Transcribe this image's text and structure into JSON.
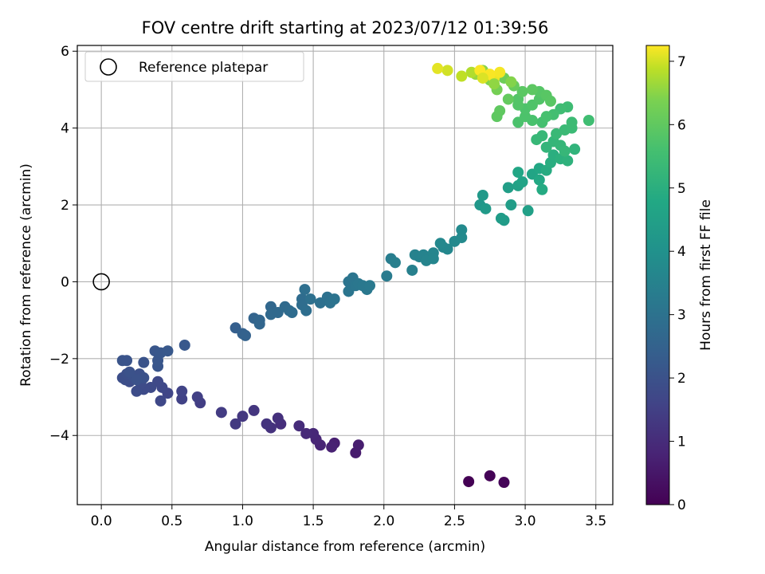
{
  "chart_data": {
    "type": "scatter",
    "title": "FOV centre drift starting at 2023/07/12 01:39:56",
    "xlabel": "Angular distance from reference (arcmin)",
    "ylabel": "Rotation from reference (arcmin)",
    "xlim": [
      -0.17,
      3.62
    ],
    "ylim": [
      -5.8,
      6.15
    ],
    "xticks": [
      0.0,
      0.5,
      1.0,
      1.5,
      2.0,
      2.5,
      3.0,
      3.5
    ],
    "xtick_labels": [
      "0.0",
      "0.5",
      "1.0",
      "1.5",
      "2.0",
      "2.5",
      "3.0",
      "3.5"
    ],
    "yticks": [
      -4,
      -2,
      0,
      2,
      4,
      6
    ],
    "ytick_labels": [
      "−4",
      "−2",
      "0",
      "2",
      "4",
      "6"
    ],
    "grid": true,
    "colormap": "viridis",
    "colorbar": {
      "label": "Hours from first FF file",
      "range": [
        0,
        7.25
      ],
      "ticks": [
        0,
        1,
        2,
        3,
        4,
        5,
        6,
        7
      ],
      "tick_labels": [
        "0",
        "1",
        "2",
        "3",
        "4",
        "5",
        "6",
        "7"
      ]
    },
    "legend": {
      "position": "top-left",
      "entries": [
        "Reference platepar"
      ]
    },
    "reference_point": {
      "x": 0.0,
      "y": 0.0,
      "style": "open-circle",
      "label": "Reference platepar"
    },
    "series": [
      {
        "columns": [
          "x",
          "y",
          "hours"
        ],
        "points": [
          [
            2.6,
            -5.2,
            0.0
          ],
          [
            2.75,
            -5.05,
            0.05
          ],
          [
            2.85,
            -5.22,
            0.1
          ],
          [
            1.8,
            -4.45,
            0.6
          ],
          [
            1.82,
            -4.25,
            0.65
          ],
          [
            1.65,
            -4.2,
            0.7
          ],
          [
            1.63,
            -4.3,
            0.75
          ],
          [
            1.55,
            -4.25,
            0.8
          ],
          [
            1.52,
            -4.1,
            0.85
          ],
          [
            1.5,
            -3.95,
            0.9
          ],
          [
            1.45,
            -3.95,
            0.95
          ],
          [
            1.4,
            -3.75,
            1.0
          ],
          [
            1.27,
            -3.7,
            1.05
          ],
          [
            1.25,
            -3.55,
            1.1
          ],
          [
            1.2,
            -3.8,
            1.15
          ],
          [
            1.17,
            -3.7,
            1.2
          ],
          [
            1.08,
            -3.35,
            1.25
          ],
          [
            1.0,
            -3.5,
            1.3
          ],
          [
            0.95,
            -3.7,
            1.35
          ],
          [
            0.85,
            -3.4,
            1.4
          ],
          [
            0.7,
            -3.15,
            1.45
          ],
          [
            0.68,
            -3.0,
            1.5
          ],
          [
            0.57,
            -3.05,
            1.55
          ],
          [
            0.57,
            -2.85,
            1.6
          ],
          [
            0.47,
            -2.9,
            1.65
          ],
          [
            0.43,
            -2.75,
            1.7
          ],
          [
            0.42,
            -3.1,
            1.72
          ],
          [
            0.4,
            -2.6,
            1.75
          ],
          [
            0.35,
            -2.75,
            1.78
          ],
          [
            0.3,
            -2.8,
            1.8
          ],
          [
            0.28,
            -2.65,
            1.82
          ],
          [
            0.25,
            -2.85,
            1.84
          ],
          [
            0.2,
            -2.6,
            1.86
          ],
          [
            0.17,
            -2.55,
            1.88
          ],
          [
            0.15,
            -2.5,
            1.9
          ],
          [
            0.18,
            -2.4,
            1.92
          ],
          [
            0.22,
            -2.45,
            1.94
          ],
          [
            0.27,
            -2.4,
            1.96
          ],
          [
            0.3,
            -2.5,
            1.98
          ],
          [
            0.25,
            -2.55,
            2.0
          ],
          [
            0.2,
            -2.35,
            2.02
          ],
          [
            0.3,
            -2.1,
            2.04
          ],
          [
            0.15,
            -2.05,
            2.06
          ],
          [
            0.18,
            -2.05,
            2.08
          ],
          [
            0.4,
            -2.2,
            2.1
          ],
          [
            0.4,
            -2.05,
            2.12
          ],
          [
            0.38,
            -1.8,
            2.14
          ],
          [
            0.42,
            -1.85,
            2.16
          ],
          [
            0.47,
            -1.8,
            2.18
          ],
          [
            0.59,
            -1.65,
            2.2
          ],
          [
            0.95,
            -1.2,
            2.4
          ],
          [
            1.0,
            -1.35,
            2.45
          ],
          [
            1.02,
            -1.4,
            2.5
          ],
          [
            1.08,
            -0.95,
            2.55
          ],
          [
            1.12,
            -1.0,
            2.6
          ],
          [
            1.12,
            -1.1,
            2.62
          ],
          [
            1.2,
            -0.65,
            2.65
          ],
          [
            1.2,
            -0.85,
            2.7
          ],
          [
            1.25,
            -0.8,
            2.72
          ],
          [
            1.3,
            -0.65,
            2.75
          ],
          [
            1.33,
            -0.75,
            2.78
          ],
          [
            1.35,
            -0.8,
            2.8
          ],
          [
            1.42,
            -0.45,
            2.82
          ],
          [
            1.42,
            -0.6,
            2.85
          ],
          [
            1.45,
            -0.75,
            2.88
          ],
          [
            1.44,
            -0.2,
            2.9
          ],
          [
            1.48,
            -0.45,
            2.92
          ],
          [
            1.55,
            -0.55,
            2.95
          ],
          [
            1.6,
            -0.4,
            2.98
          ],
          [
            1.62,
            -0.55,
            3.0
          ],
          [
            1.65,
            -0.45,
            3.02
          ],
          [
            1.75,
            0.0,
            3.05
          ],
          [
            1.78,
            0.1,
            3.08
          ],
          [
            1.75,
            -0.25,
            3.1
          ],
          [
            1.8,
            -0.1,
            3.12
          ],
          [
            1.82,
            -0.05,
            3.15
          ],
          [
            1.85,
            -0.1,
            3.18
          ],
          [
            1.88,
            -0.2,
            3.2
          ],
          [
            1.9,
            -0.1,
            3.22
          ],
          [
            2.02,
            0.15,
            3.3
          ],
          [
            2.05,
            0.6,
            3.35
          ],
          [
            2.08,
            0.5,
            3.4
          ],
          [
            2.2,
            0.3,
            3.45
          ],
          [
            2.22,
            0.7,
            3.5
          ],
          [
            2.25,
            0.65,
            3.52
          ],
          [
            2.28,
            0.7,
            3.55
          ],
          [
            2.3,
            0.55,
            3.58
          ],
          [
            2.35,
            0.75,
            3.6
          ],
          [
            2.35,
            0.6,
            3.62
          ],
          [
            2.42,
            0.9,
            3.65
          ],
          [
            2.45,
            0.85,
            3.68
          ],
          [
            2.4,
            1.0,
            3.7
          ],
          [
            2.5,
            1.05,
            3.72
          ],
          [
            2.55,
            1.15,
            3.75
          ],
          [
            2.55,
            1.35,
            3.78
          ],
          [
            2.68,
            2.0,
            4.2
          ],
          [
            2.7,
            2.25,
            4.25
          ],
          [
            2.72,
            1.9,
            4.3
          ],
          [
            2.85,
            1.6,
            4.35
          ],
          [
            2.83,
            1.65,
            4.38
          ],
          [
            2.9,
            2.0,
            4.4
          ],
          [
            2.88,
            2.45,
            4.45
          ],
          [
            3.02,
            1.85,
            4.5
          ],
          [
            2.95,
            2.5,
            4.55
          ],
          [
            2.98,
            2.6,
            4.6
          ],
          [
            3.05,
            2.8,
            4.65
          ],
          [
            2.95,
            2.85,
            4.7
          ],
          [
            3.1,
            2.95,
            4.75
          ],
          [
            3.1,
            2.65,
            4.8
          ],
          [
            3.12,
            2.4,
            4.85
          ],
          [
            3.15,
            2.9,
            4.9
          ],
          [
            3.18,
            3.1,
            4.95
          ],
          [
            3.2,
            3.3,
            5.0
          ],
          [
            3.25,
            3.2,
            5.05
          ],
          [
            3.3,
            3.15,
            5.1
          ],
          [
            3.35,
            3.45,
            5.15
          ],
          [
            3.15,
            3.5,
            5.2
          ],
          [
            3.2,
            3.65,
            5.22
          ],
          [
            3.25,
            3.55,
            5.25
          ],
          [
            3.28,
            3.4,
            5.28
          ],
          [
            3.08,
            3.7,
            5.3
          ],
          [
            3.12,
            3.8,
            5.32
          ],
          [
            3.22,
            3.85,
            5.35
          ],
          [
            3.28,
            3.95,
            5.38
          ],
          [
            3.33,
            4.0,
            5.4
          ],
          [
            3.33,
            4.15,
            5.42
          ],
          [
            3.3,
            4.55,
            5.45
          ],
          [
            3.25,
            4.5,
            5.48
          ],
          [
            3.45,
            4.2,
            5.5
          ],
          [
            3.2,
            4.35,
            5.55
          ],
          [
            3.12,
            4.15,
            5.6
          ],
          [
            3.15,
            4.3,
            5.62
          ],
          [
            3.05,
            4.2,
            5.65
          ],
          [
            2.95,
            4.15,
            5.68
          ],
          [
            3.0,
            4.3,
            5.7
          ],
          [
            3.0,
            4.5,
            5.72
          ],
          [
            3.05,
            4.6,
            5.75
          ],
          [
            3.1,
            4.75,
            5.78
          ],
          [
            2.95,
            4.6,
            5.8
          ],
          [
            2.95,
            4.75,
            5.82
          ],
          [
            3.1,
            4.95,
            5.85
          ],
          [
            3.15,
            4.85,
            5.88
          ],
          [
            3.18,
            4.7,
            5.9
          ],
          [
            2.98,
            4.95,
            5.92
          ],
          [
            3.05,
            5.0,
            5.95
          ],
          [
            2.8,
            4.3,
            5.98
          ],
          [
            2.82,
            4.45,
            6.0
          ],
          [
            2.88,
            4.75,
            6.05
          ],
          [
            2.92,
            5.1,
            6.1
          ],
          [
            2.85,
            5.3,
            6.2
          ],
          [
            2.8,
            5.0,
            6.3
          ],
          [
            2.75,
            5.25,
            6.4
          ],
          [
            2.7,
            5.5,
            6.5
          ],
          [
            2.65,
            5.4,
            6.6
          ],
          [
            2.72,
            5.35,
            6.7
          ],
          [
            2.62,
            5.45,
            6.8
          ],
          [
            2.55,
            5.35,
            6.9
          ],
          [
            2.45,
            5.5,
            7.0
          ],
          [
            2.38,
            5.55,
            7.1
          ],
          [
            2.78,
            5.3,
            7.15
          ],
          [
            2.82,
            5.45,
            7.2
          ],
          [
            2.75,
            5.4,
            7.22
          ],
          [
            2.68,
            5.5,
            7.24
          ],
          [
            2.9,
            5.2,
            6.45
          ],
          [
            2.78,
            5.15,
            6.55
          ],
          [
            2.7,
            5.3,
            7.05
          ]
        ]
      }
    ]
  }
}
